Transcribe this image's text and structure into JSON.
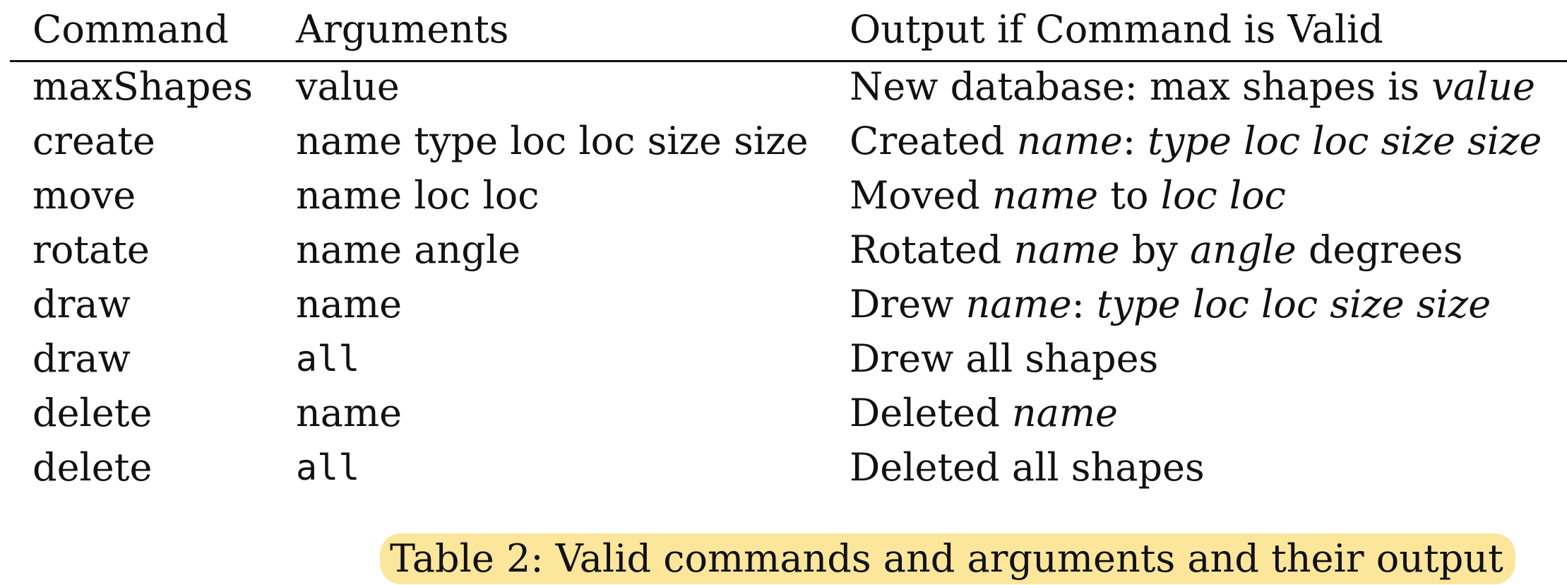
{
  "table": {
    "headers": {
      "command": "Command",
      "arguments": "Arguments",
      "output": "Output if Command is Valid"
    },
    "rows": [
      {
        "command": "maxShapes",
        "args": "value",
        "out": {
          "p1": "New database: max shapes is ",
          "i1": "value"
        }
      },
      {
        "command": "create",
        "args": "name type loc loc size size",
        "out": {
          "p1": "Created ",
          "i1": "name",
          "p2": ": ",
          "i2": "type loc loc size size"
        }
      },
      {
        "command": "move",
        "args": "name loc loc",
        "out": {
          "p1": "Moved ",
          "i1": "name",
          "p2": " to ",
          "i2": "loc loc"
        }
      },
      {
        "command": "rotate",
        "args": "name angle",
        "out": {
          "p1": "Rotated ",
          "i1": "name",
          "p2": " by ",
          "i2": "angle",
          "p3": " degrees"
        }
      },
      {
        "command": "draw",
        "args": "name",
        "out": {
          "p1": "Drew ",
          "i1": "name",
          "p2": ": ",
          "i2": "type loc loc size size"
        }
      },
      {
        "command": "draw",
        "args": "all",
        "out": {
          "p1": "Drew all shapes"
        }
      },
      {
        "command": "delete",
        "args": "name",
        "out": {
          "p1": "Deleted ",
          "i1": "name"
        }
      },
      {
        "command": "delete",
        "args": "all",
        "out": {
          "p1": "Deleted all shapes"
        }
      }
    ]
  },
  "caption": "Table 2: Valid commands and arguments and their output",
  "colors": {
    "text": "#111111",
    "highlight": "#fbe69b"
  }
}
